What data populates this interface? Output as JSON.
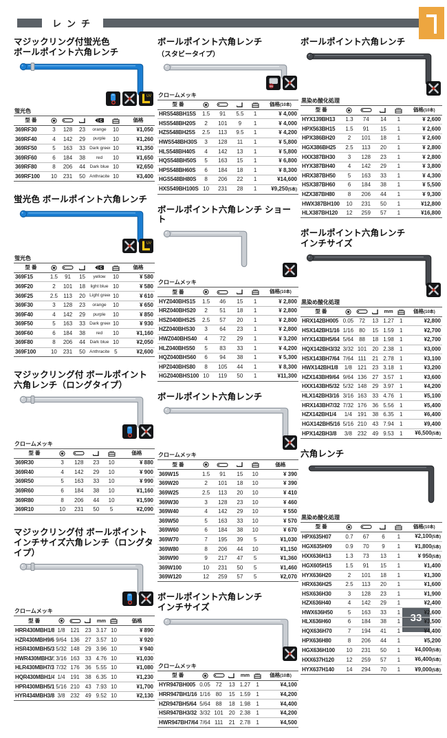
{
  "header": {
    "title": "レンチ",
    "tab_number": "1"
  },
  "footer": {
    "page_number": "33"
  },
  "labels": {
    "model": "型 番",
    "mm": "mm"
  },
  "sections": [
    {
      "title_lines": [
        "マジックリング付蛍光色",
        "ボールポイント六角レンチ"
      ],
      "finish": "蛍光色",
      "wrench": {
        "color": "blue",
        "form": "long",
        "ring": true,
        "ball": true
      },
      "badges": [
        "magic-ring",
        "multi-tool",
        "uv"
      ],
      "columns": [
        "model",
        "ball",
        "len",
        "arm",
        "color",
        "qty",
        "price"
      ],
      "price_label": "価格",
      "rows": [
        [
          "369RF30",
          "3",
          "128",
          "23",
          "orange",
          "10",
          "¥1,050"
        ],
        [
          "369RF40",
          "4",
          "142",
          "29",
          "purple",
          "10",
          "¥1,260"
        ],
        [
          "369RF50",
          "5",
          "163",
          "33",
          "Dark green",
          "10",
          "¥1,350"
        ],
        [
          "369RF60",
          "6",
          "184",
          "38",
          "red",
          "10",
          "¥1,650"
        ],
        [
          "369RF80",
          "8",
          "206",
          "44",
          "Dark blue",
          "10",
          "¥2,650"
        ],
        [
          "369RF100",
          "10",
          "231",
          "50",
          "Anthracite",
          "10",
          "¥3,400"
        ]
      ]
    },
    {
      "title_lines": [
        "蛍光色 ボールポイント六角レンチ"
      ],
      "finish": "蛍光色",
      "wrench": {
        "color": "blue",
        "form": "long",
        "ring": false,
        "ball": true
      },
      "badges": [
        "multi-tool",
        "uv"
      ],
      "columns": [
        "model",
        "ball",
        "len",
        "arm",
        "color",
        "qty",
        "price"
      ],
      "price_label": "価格",
      "rows": [
        [
          "369F15",
          "1.5",
          "91",
          "15",
          "yellow",
          "10",
          "¥ 580"
        ],
        [
          "369F20",
          "2",
          "101",
          "18",
          "light blue",
          "10",
          "¥ 580"
        ],
        [
          "369F25",
          "2.5",
          "113",
          "20",
          "Light green",
          "10",
          "¥ 610"
        ],
        [
          "369F30",
          "3",
          "128",
          "23",
          "orange",
          "10",
          "¥ 650"
        ],
        [
          "369F40",
          "4",
          "142",
          "29",
          "purple",
          "10",
          "¥ 850"
        ],
        [
          "369F50",
          "5",
          "163",
          "33",
          "Dark green",
          "10",
          "¥ 930"
        ],
        [
          "369F60",
          "6",
          "184",
          "38",
          "red",
          "10",
          "¥1,160"
        ],
        [
          "369F80",
          "8",
          "206",
          "44",
          "Dark blue",
          "10",
          "¥2,050"
        ],
        [
          "369F100",
          "10",
          "231",
          "50",
          "Anthracite",
          "5",
          "¥2,600"
        ]
      ]
    },
    {
      "title_lines": [
        "マジックリング付 ボールポイント",
        "六角レンチ（ロングタイプ）"
      ],
      "finish": "クロームメッキ",
      "wrench": {
        "color": "chrome",
        "form": "long",
        "ring": true,
        "ball": true
      },
      "badges": [
        "magic-ring",
        "multi-tool"
      ],
      "columns": [
        "model",
        "ball",
        "len",
        "arm",
        "qty",
        "price"
      ],
      "price_label": "価格",
      "rows": [
        [
          "369R30",
          "3",
          "128",
          "23",
          "10",
          "¥ 880"
        ],
        [
          "369R40",
          "4",
          "142",
          "29",
          "10",
          "¥ 900"
        ],
        [
          "369R50",
          "5",
          "163",
          "33",
          "10",
          "¥ 990"
        ],
        [
          "369R60",
          "6",
          "184",
          "38",
          "10",
          "¥1,160"
        ],
        [
          "369R80",
          "8",
          "206",
          "44",
          "10",
          "¥1,590"
        ],
        [
          "369R10",
          "10",
          "231",
          "50",
          "5",
          "¥2,090"
        ]
      ]
    },
    {
      "title_lines": [
        "マジックリング付 ボールポイント",
        "インチサイズ六角レンチ（ロングタイプ）"
      ],
      "finish": "クロームメッキ",
      "wrench": {
        "color": "chrome",
        "form": "long",
        "ring": true,
        "ball": true
      },
      "badges": [
        "magic-ring",
        "multi-tool"
      ],
      "columns": [
        "model",
        "ball",
        "len",
        "arm",
        "mm",
        "qty",
        "price"
      ],
      "price_label": "価格",
      "rows": [
        [
          "HRR430MBH1/8",
          "1/8",
          "121",
          "23",
          "3.17",
          "10",
          "¥ 890"
        ],
        [
          "HZR430MBH9/64",
          "9/64",
          "136",
          "27",
          "3.57",
          "10",
          "¥ 920"
        ],
        [
          "HSR430MBH5/32",
          "5/32",
          "148",
          "29",
          "3.96",
          "10",
          "¥ 940"
        ],
        [
          "HWR430MBH3/16",
          "3/16",
          "163",
          "33",
          "4.76",
          "10",
          "¥1,030"
        ],
        [
          "HLR430MBH7/32",
          "7/32",
          "176",
          "36",
          "5.55",
          "10",
          "¥1,080"
        ],
        [
          "HQR430MBH1/4",
          "1/4",
          "191",
          "38",
          "6.35",
          "10",
          "¥1,230"
        ],
        [
          "HPR430MBH5/16",
          "5/16",
          "210",
          "43",
          "7.93",
          "10",
          "¥1,700"
        ],
        [
          "HYR434MBH3/8",
          "3/8",
          "232",
          "49",
          "9.52",
          "10",
          "¥2,130"
        ]
      ]
    },
    {
      "title_lines": [
        "ボールポイント六角レンチ"
      ],
      "subtitle": "（スタビータイプ）",
      "finish": "クロームメッキ",
      "wrench": {
        "color": "chrome",
        "form": "stubby",
        "ring": false,
        "ball": true
      },
      "badges": [
        "hand-95",
        "multi-tool"
      ],
      "columns": [
        "model",
        "ball",
        "len",
        "arm",
        "qty",
        "price"
      ],
      "price_label": "価格(10本)",
      "rows": [
        [
          "HRS548BH15S",
          "1.5",
          "91",
          "5.5",
          "1",
          "¥ 4,000"
        ],
        [
          "HSS548BH20S",
          "2",
          "101",
          "9",
          "1",
          "¥ 4,000"
        ],
        [
          "HZS548BH25S",
          "2.5",
          "113",
          "9.5",
          "1",
          "¥ 4,200"
        ],
        [
          "HWS548BH30S",
          "3",
          "128",
          "11",
          "1",
          "¥ 5,800"
        ],
        [
          "HLS548BH40S",
          "4",
          "142",
          "13",
          "1",
          "¥ 5,800"
        ],
        [
          "HQS548BH50S",
          "5",
          "163",
          "15",
          "1",
          "¥ 6,800"
        ],
        [
          "HPS548BH60S",
          "6",
          "184",
          "18",
          "1",
          "¥ 8,300"
        ],
        [
          "HGS548BH80S",
          "8",
          "206",
          "22",
          "1",
          "¥14,600"
        ],
        [
          "HXS549BH100S",
          "10",
          "231",
          "28",
          "1",
          "¥9,250(5本)"
        ]
      ]
    },
    {
      "title_lines": [
        "ボールポイント六角レンチ ショート"
      ],
      "finish": "クロームメッキ",
      "wrench": {
        "color": "chrome",
        "form": "short",
        "ring": false,
        "ball": true
      },
      "badges": [
        "multi-tool"
      ],
      "columns": [
        "model",
        "ball",
        "len",
        "arm",
        "qty",
        "price"
      ],
      "price_label": "価格(10本)",
      "rows": [
        [
          "HYZ040BHS15",
          "1.5",
          "46",
          "15",
          "1",
          "¥ 2,800"
        ],
        [
          "HRZ040BHS20",
          "2",
          "51",
          "18",
          "1",
          "¥ 2,800"
        ],
        [
          "HSZ040BHS25",
          "2.5",
          "57",
          "20",
          "1",
          "¥ 2,800"
        ],
        [
          "HZZ040BHS30",
          "3",
          "64",
          "23",
          "1",
          "¥ 2,800"
        ],
        [
          "HWZ040BHS40",
          "4",
          "72",
          "29",
          "1",
          "¥ 3,200"
        ],
        [
          "HLZ040BHS50",
          "5",
          "83",
          "33",
          "1",
          "¥ 4,200"
        ],
        [
          "HQZ040BHS60",
          "6",
          "94",
          "38",
          "1",
          "¥ 5,300"
        ],
        [
          "HPZ040BHS80",
          "8",
          "105",
          "44",
          "1",
          "¥ 8,300"
        ],
        [
          "HGZ040BHS100",
          "10",
          "119",
          "50",
          "1",
          "¥11,300"
        ]
      ]
    },
    {
      "title_lines": [
        "ボールポイント六角レンチ"
      ],
      "finish": "クロームメッキ",
      "wrench": {
        "color": "chrome",
        "form": "standard",
        "ring": false,
        "ball": true
      },
      "badges": [
        "multi-tool"
      ],
      "columns": [
        "model",
        "ball",
        "len",
        "arm",
        "qty",
        "price"
      ],
      "price_label": "価格",
      "rows": [
        [
          "369W15",
          "1.5",
          "91",
          "15",
          "10",
          "¥ 390"
        ],
        [
          "369W20",
          "2",
          "101",
          "18",
          "10",
          "¥ 390"
        ],
        [
          "369W25",
          "2.5",
          "113",
          "20",
          "10",
          "¥ 410"
        ],
        [
          "369W30",
          "3",
          "128",
          "23",
          "10",
          "¥ 460"
        ],
        [
          "369W40",
          "4",
          "142",
          "29",
          "10",
          "¥ 550"
        ],
        [
          "369W50",
          "5",
          "163",
          "33",
          "10",
          "¥ 570"
        ],
        [
          "369W60",
          "6",
          "184",
          "38",
          "10",
          "¥ 670"
        ],
        [
          "369W70",
          "7",
          "195",
          "39",
          "5",
          "¥1,030"
        ],
        [
          "369W80",
          "8",
          "206",
          "44",
          "10",
          "¥1,150"
        ],
        [
          "369W90",
          "9",
          "217",
          "47",
          "5",
          "¥1,360"
        ],
        [
          "369W100",
          "10",
          "231",
          "50",
          "5",
          "¥1,460"
        ],
        [
          "369W120",
          "12",
          "259",
          "57",
          "5",
          "¥2,070"
        ]
      ]
    },
    {
      "title_lines": [
        "ボールポイント六角レンチ",
        "インチサイズ"
      ],
      "finish": "クロームメッキ",
      "wrench": {
        "color": "chrome",
        "form": "standard",
        "ring": false,
        "ball": true
      },
      "badges": [
        "multi-tool"
      ],
      "columns": [
        "model",
        "ball",
        "len",
        "arm",
        "mm",
        "qty",
        "price"
      ],
      "price_label": "価格(10本)",
      "rows": [
        [
          "HYR947BH005",
          "0.05",
          "72",
          "13",
          "1.27",
          "1",
          "¥4,100"
        ],
        [
          "HRR947BH1/16",
          "1/16",
          "80",
          "15",
          "1.59",
          "1",
          "¥4,200"
        ],
        [
          "HZR947BH5/64",
          "5/64",
          "88",
          "18",
          "1.98",
          "1",
          "¥4,400"
        ],
        [
          "HSR947BH3/32",
          "3/32",
          "101",
          "20",
          "2.38",
          "1",
          "¥4,200"
        ],
        [
          "HWR947BH7/64",
          "7/64",
          "111",
          "21",
          "2.78",
          "1",
          "¥4,500"
        ]
      ]
    },
    {
      "title_lines": [
        "ボールポイント六角レンチ"
      ],
      "finish": "黒染め酸化処理",
      "wrench": {
        "color": "black",
        "form": "standard",
        "ring": false,
        "ball": true
      },
      "badges": [
        "multi-tool"
      ],
      "columns": [
        "model",
        "ball",
        "len",
        "arm",
        "qty",
        "price"
      ],
      "price_label": "価格(10本)",
      "rows": [
        [
          "HYX139BH13",
          "1.3",
          "74",
          "14",
          "1",
          "¥ 2,600"
        ],
        [
          "HPX563BH15",
          "1.5",
          "91",
          "15",
          "1",
          "¥ 2,600"
        ],
        [
          "HPX386BH20",
          "2",
          "101",
          "18",
          "1",
          "¥ 2,600"
        ],
        [
          "HGX386BH25",
          "2.5",
          "113",
          "20",
          "1",
          "¥ 2,800"
        ],
        [
          "HXX387BH30",
          "3",
          "128",
          "23",
          "1",
          "¥ 2,800"
        ],
        [
          "HYX387BH40",
          "4",
          "142",
          "29",
          "1",
          "¥ 3,800"
        ],
        [
          "HRX387BH50",
          "5",
          "163",
          "33",
          "1",
          "¥ 4,300"
        ],
        [
          "HSX387BH60",
          "6",
          "184",
          "38",
          "1",
          "¥ 5,500"
        ],
        [
          "HZX387BH80",
          "8",
          "206",
          "44",
          "1",
          "¥ 9,300"
        ],
        [
          "HWX387BH100",
          "10",
          "231",
          "50",
          "1",
          "¥12,800"
        ],
        [
          "HLX387BH120",
          "12",
          "259",
          "57",
          "1",
          "¥16,800"
        ]
      ]
    },
    {
      "title_lines": [
        "ボールポイント六角レンチ",
        "インチサイズ"
      ],
      "finish": "黒染め酸化処理",
      "wrench": {
        "color": "black",
        "form": "standard",
        "ring": false,
        "ball": true
      },
      "badges": [
        "multi-tool"
      ],
      "columns": [
        "model",
        "ball",
        "len",
        "arm",
        "mm",
        "qty",
        "price"
      ],
      "price_label": "価格(10本)",
      "rows": [
        [
          "HRX142BH005",
          "0.05",
          "72",
          "13",
          "1.27",
          "1",
          "¥2,800"
        ],
        [
          "HSX142BH1/16",
          "1/16",
          "80",
          "15",
          "1.59",
          "1",
          "¥2,700"
        ],
        [
          "HYX143BH5/64",
          "5/64",
          "88",
          "18",
          "1.98",
          "1",
          "¥2,700"
        ],
        [
          "HQX142BH3/32",
          "3/32",
          "101",
          "20",
          "2.38",
          "1",
          "¥3,000"
        ],
        [
          "HSX143BH7/64",
          "7/64",
          "111",
          "21",
          "2.78",
          "1",
          "¥3,100"
        ],
        [
          "HWX142BH1/8",
          "1/8",
          "121",
          "23",
          "3.18",
          "1",
          "¥3,200"
        ],
        [
          "HZX143BH9/64",
          "9/64",
          "136",
          "27",
          "3.57",
          "1",
          "¥3,600"
        ],
        [
          "HXX143BH5/32",
          "5/32",
          "148",
          "29",
          "3.97",
          "1",
          "¥4,200"
        ],
        [
          "HLX142BH3/16",
          "3/16",
          "163",
          "33",
          "4.76",
          "1",
          "¥5,100"
        ],
        [
          "HRX143BH7/32",
          "7/32",
          "176",
          "36",
          "5.56",
          "1",
          "¥5,400"
        ],
        [
          "HZX142BH1/4",
          "1/4",
          "191",
          "38",
          "6.35",
          "1",
          "¥6,400"
        ],
        [
          "HGX142BH5/16",
          "5/16",
          "210",
          "43",
          "7.94",
          "1",
          "¥9,400"
        ],
        [
          "HPX142BH3/8",
          "3/8",
          "232",
          "49",
          "9.53",
          "1",
          "¥6,500(5本)"
        ]
      ]
    },
    {
      "title_lines": [
        "六角レンチ"
      ],
      "finish": "黒染め酸化処理",
      "wrench": {
        "color": "black",
        "form": "hexlong",
        "ring": false,
        "ball": false
      },
      "badges": [],
      "columns": [
        "model",
        "ball",
        "len",
        "arm",
        "qty",
        "price"
      ],
      "price_label": "価格(10本)",
      "rows": [
        [
          "HPX635H07",
          "0.7",
          "67",
          "6",
          "1",
          "¥2,100(5本)"
        ],
        [
          "HGX635H09",
          "0.9",
          "70",
          "9",
          "1",
          "¥1,800(5本)"
        ],
        [
          "HXX636H13",
          "1.3",
          "73",
          "13",
          "1",
          "¥ 950(5本)"
        ],
        [
          "HGX605H15",
          "1.5",
          "91",
          "15",
          "1",
          "¥1,400"
        ],
        [
          "HYX636H20",
          "2",
          "101",
          "18",
          "1",
          "¥1,300"
        ],
        [
          "HRX636H25",
          "2.5",
          "113",
          "20",
          "1",
          "¥1,600"
        ],
        [
          "HSX636H30",
          "3",
          "128",
          "23",
          "1",
          "¥1,900"
        ],
        [
          "HZX636H40",
          "4",
          "142",
          "29",
          "1",
          "¥2,400"
        ],
        [
          "HWX636H50",
          "5",
          "163",
          "33",
          "1",
          "¥2,600"
        ],
        [
          "HLX636H60",
          "6",
          "184",
          "38",
          "1",
          "¥3,500"
        ],
        [
          "HQX636H70",
          "7",
          "194",
          "41",
          "1",
          "¥4,400"
        ],
        [
          "HPX636H80",
          "8",
          "206",
          "44",
          "1",
          "¥5,200"
        ],
        [
          "HGX636H100",
          "10",
          "231",
          "50",
          "1",
          "¥4,000(5本)"
        ],
        [
          "HXX637H120",
          "12",
          "259",
          "57",
          "1",
          "¥6,400(5本)"
        ],
        [
          "HYX637H140",
          "14",
          "294",
          "70",
          "1",
          "¥9,000(5本)"
        ]
      ]
    }
  ]
}
